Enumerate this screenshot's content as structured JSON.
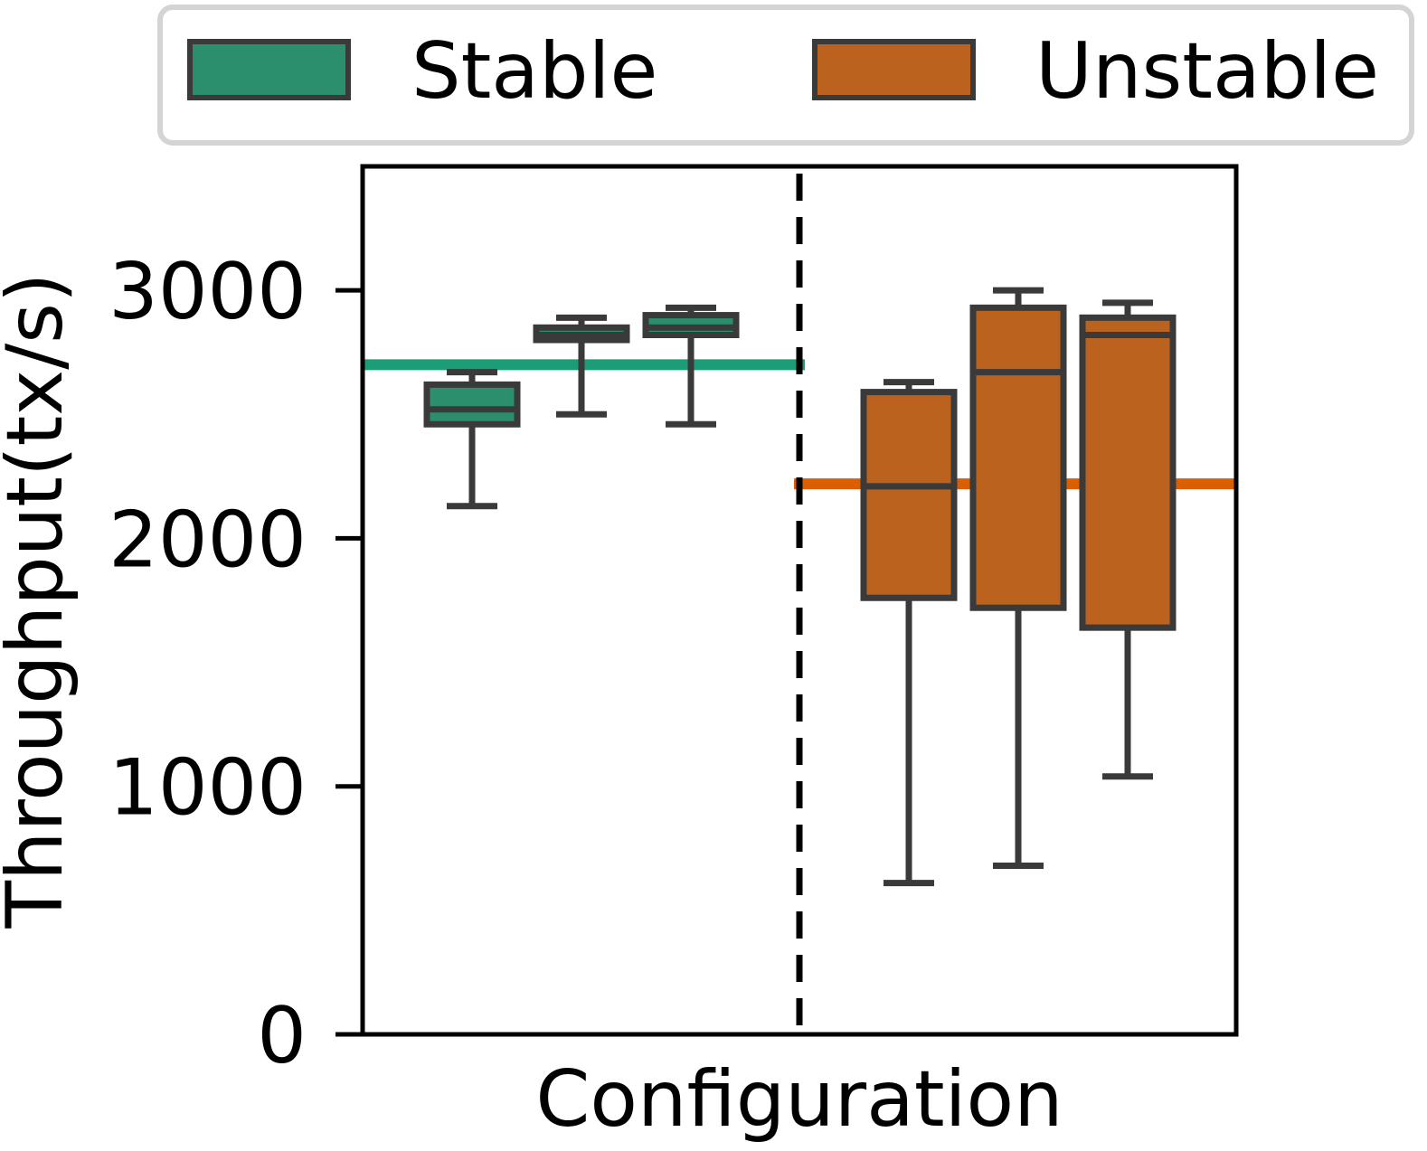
{
  "chart_data": {
    "type": "box",
    "xlabel": "Configuration",
    "ylabel": "Throughput(tx/s)",
    "ylim": [
      0,
      3500
    ],
    "yticks": [
      0,
      1000,
      2000,
      3000
    ],
    "grid": false,
    "legend_position": "top",
    "series": [
      {
        "name": "Stable",
        "color": "#2b8f6e",
        "reference_line": 2700,
        "reference_color": "#1b9e77",
        "boxes": [
          {
            "whisker_low": 2130,
            "q1": 2460,
            "median": 2520,
            "q3": 2620,
            "whisker_high": 2670
          },
          {
            "whisker_low": 2500,
            "q1": 2800,
            "median": 2820,
            "q3": 2850,
            "whisker_high": 2890
          },
          {
            "whisker_low": 2460,
            "q1": 2820,
            "median": 2850,
            "q3": 2900,
            "whisker_high": 2930
          }
        ]
      },
      {
        "name": "Unstable",
        "color": "#bc621f",
        "reference_line": 2220,
        "reference_color": "#d95f02",
        "boxes": [
          {
            "whisker_low": 610,
            "q1": 1760,
            "median": 2210,
            "q3": 2590,
            "whisker_high": 2630
          },
          {
            "whisker_low": 680,
            "q1": 1720,
            "median": 2670,
            "q3": 2930,
            "whisker_high": 3000
          },
          {
            "whisker_low": 1040,
            "q1": 1640,
            "median": 2820,
            "q3": 2890,
            "whisker_high": 2950
          }
        ]
      }
    ],
    "separator": "dashed vertical line between groups"
  }
}
